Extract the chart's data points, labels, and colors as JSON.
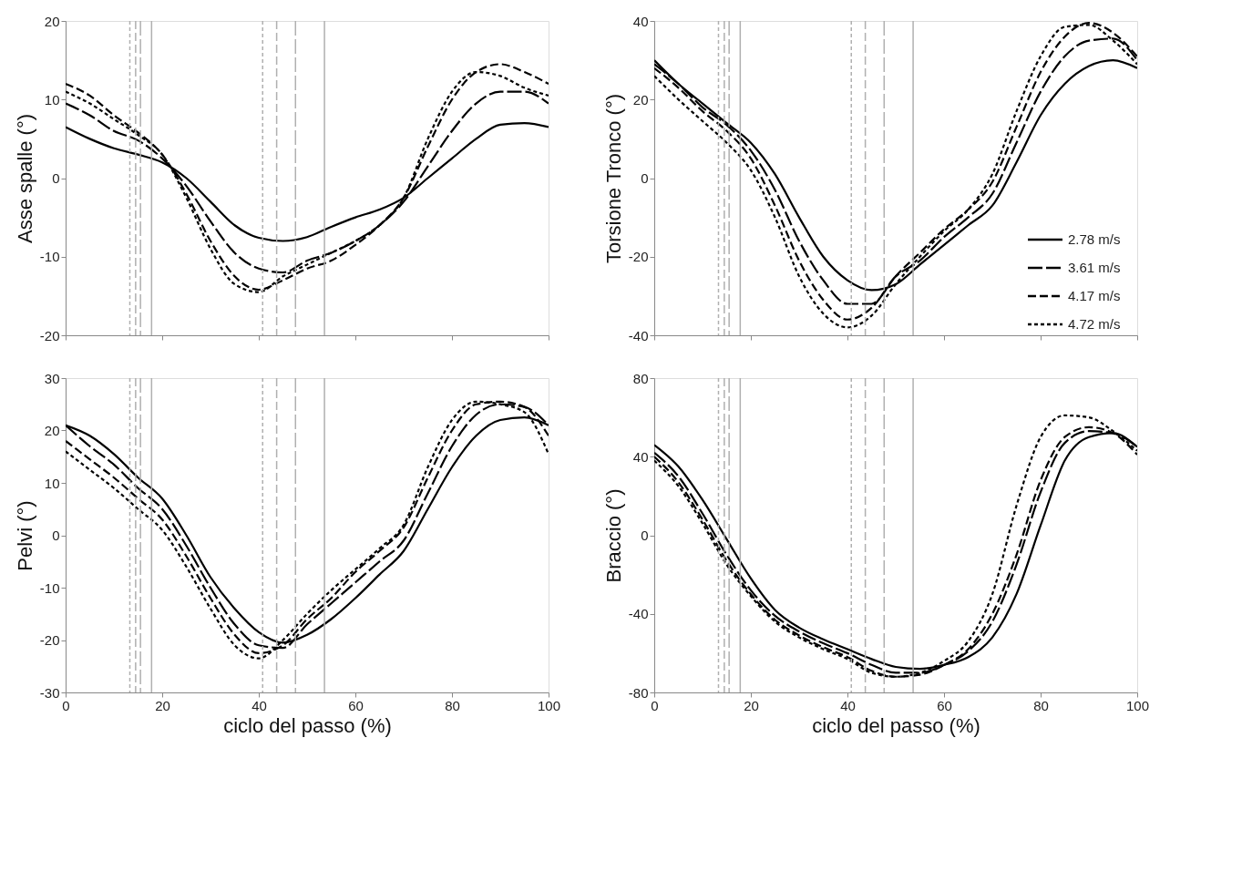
{
  "chart_data": [
    {
      "type": "line",
      "ylabel": "Asse spalle (°)",
      "xlim": [
        0,
        100
      ],
      "xticks": [
        0,
        20,
        40,
        60,
        80,
        100
      ],
      "ylim": [
        -20,
        20
      ],
      "yticks": [
        -20,
        -10,
        0,
        10,
        20
      ],
      "tick_labels": "y",
      "grid": false,
      "legend": false,
      "marker": "none",
      "x": [
        0,
        5,
        10,
        15,
        20,
        25,
        30,
        35,
        40,
        45,
        50,
        55,
        60,
        65,
        70,
        75,
        80,
        85,
        90,
        95,
        100
      ],
      "series": [
        {
          "color": "#000000",
          "line_style": "solid",
          "values": [
            6.5,
            5,
            3.8,
            3,
            2,
            0,
            -3,
            -6,
            -7.6,
            -8,
            -7.5,
            -6.2,
            -5,
            -4,
            -2.5,
            0,
            2.5,
            5,
            6.8,
            7,
            6.5
          ]
        },
        {
          "color": "#000000",
          "line_style": "dashdot",
          "values": [
            9.5,
            8,
            6,
            4.8,
            2.5,
            -1,
            -5.5,
            -9.5,
            -11.5,
            -12,
            -10.5,
            -9.5,
            -8,
            -6,
            -3,
            1.5,
            6,
            9.5,
            11,
            11,
            9.5
          ]
        },
        {
          "color": "#000000",
          "line_style": "dashed",
          "values": [
            12,
            10.5,
            8,
            5.8,
            3,
            -2,
            -8,
            -12.5,
            -14.2,
            -13,
            -11.5,
            -10.5,
            -8.5,
            -6,
            -2.5,
            4,
            10,
            13.5,
            14.5,
            13.5,
            12
          ]
        },
        {
          "color": "#000000",
          "line_style": "dotted",
          "values": [
            11,
            9.5,
            7.5,
            5.5,
            3,
            -2.5,
            -9,
            -13.5,
            -14.5,
            -12.5,
            -11,
            -9.5,
            -8,
            -6,
            -2.5,
            5,
            11,
            13.5,
            13,
            11.5,
            10.5
          ]
        }
      ],
      "ref_lines": [
        {
          "axis": "x",
          "value": 13.3,
          "color": "#b0b0b0",
          "line_style": "dotted"
        },
        {
          "axis": "x",
          "value": 14.5,
          "color": "#b0b0b0",
          "line_style": "dashed"
        },
        {
          "axis": "x",
          "value": 15.5,
          "color": "#b0b0b0",
          "line_style": "dashdot"
        },
        {
          "axis": "x",
          "value": 17.8,
          "color": "#b0b0b0",
          "line_style": "solid"
        },
        {
          "axis": "x",
          "value": 40.8,
          "color": "#b0b0b0",
          "line_style": "dotted"
        },
        {
          "axis": "x",
          "value": 43.7,
          "color": "#b0b0b0",
          "line_style": "dashed"
        },
        {
          "axis": "x",
          "value": 47.6,
          "color": "#b0b0b0",
          "line_style": "dashdot"
        },
        {
          "axis": "x",
          "value": 53.6,
          "color": "#b0b0b0",
          "line_style": "solid"
        }
      ]
    },
    {
      "type": "line",
      "ylabel": "Torsione Tronco (°)",
      "xlim": [
        0,
        100
      ],
      "xticks": [
        0,
        20,
        40,
        60,
        80,
        100
      ],
      "ylim": [
        -40,
        40
      ],
      "yticks": [
        -40,
        -20,
        0,
        20,
        40
      ],
      "tick_labels": "y",
      "grid": false,
      "legend": "bottom right",
      "marker": "none",
      "x": [
        0,
        5,
        10,
        15,
        20,
        25,
        30,
        35,
        40,
        45,
        50,
        55,
        60,
        65,
        70,
        75,
        80,
        85,
        90,
        95,
        100
      ],
      "series": [
        {
          "name": "2.78 m/s",
          "color": "#000000",
          "line_style": "solid",
          "values": [
            30,
            24,
            19,
            14,
            9,
            1,
            -10,
            -20,
            -26,
            -28.5,
            -27,
            -22,
            -17,
            -12,
            -7,
            4,
            16,
            24,
            28.5,
            30,
            28
          ]
        },
        {
          "name": "3.61 m/s",
          "color": "#000000",
          "line_style": "dashdot",
          "values": [
            29,
            24,
            18,
            13.5,
            7,
            -3,
            -16,
            -26,
            -32,
            -32,
            -25,
            -21,
            -15,
            -10,
            -4,
            9,
            22,
            31,
            35,
            35.5,
            30
          ]
        },
        {
          "name": "4.17 m/s",
          "color": "#000000",
          "line_style": "dashed",
          "values": [
            28,
            23,
            17,
            12,
            5,
            -7,
            -21,
            -31,
            -36,
            -33,
            -25,
            -19,
            -13,
            -8,
            -1,
            13,
            27,
            36,
            39.5,
            37,
            31
          ]
        },
        {
          "name": "4.72 m/s",
          "color": "#000000",
          "line_style": "dotted",
          "values": [
            26,
            20,
            14.5,
            9,
            2,
            -10,
            -25,
            -34.5,
            -38,
            -35,
            -27,
            -20,
            -13.5,
            -8,
            1,
            17,
            31,
            38.5,
            39,
            35,
            29
          ]
        }
      ],
      "ref_lines": [
        {
          "axis": "x",
          "value": 13.3,
          "color": "#b0b0b0",
          "line_style": "dotted"
        },
        {
          "axis": "x",
          "value": 14.5,
          "color": "#b0b0b0",
          "line_style": "dashed"
        },
        {
          "axis": "x",
          "value": 15.5,
          "color": "#b0b0b0",
          "line_style": "dashdot"
        },
        {
          "axis": "x",
          "value": 17.8,
          "color": "#b0b0b0",
          "line_style": "solid"
        },
        {
          "axis": "x",
          "value": 40.8,
          "color": "#b0b0b0",
          "line_style": "dotted"
        },
        {
          "axis": "x",
          "value": 43.7,
          "color": "#b0b0b0",
          "line_style": "dashed"
        },
        {
          "axis": "x",
          "value": 47.6,
          "color": "#b0b0b0",
          "line_style": "dashdot"
        },
        {
          "axis": "x",
          "value": 53.6,
          "color": "#b0b0b0",
          "line_style": "solid"
        }
      ]
    },
    {
      "type": "line",
      "ylabel": "Pelvi (°)",
      "xlabel": "ciclo del passo (%)",
      "xlim": [
        0,
        100
      ],
      "xticks": [
        0,
        20,
        40,
        60,
        80,
        100
      ],
      "ylim": [
        -30,
        30
      ],
      "yticks": [
        -30,
        -20,
        -10,
        0,
        10,
        20,
        30
      ],
      "grid": false,
      "legend": false,
      "marker": "none",
      "x": [
        0,
        5,
        10,
        15,
        20,
        25,
        30,
        35,
        40,
        45,
        50,
        55,
        60,
        65,
        70,
        75,
        80,
        85,
        90,
        95,
        100
      ],
      "series": [
        {
          "color": "#000000",
          "line_style": "solid",
          "values": [
            21,
            19,
            15.5,
            11,
            7,
            0,
            -8,
            -14,
            -18.5,
            -20.5,
            -19,
            -16,
            -12,
            -7.5,
            -3,
            5,
            13,
            19,
            22,
            22.5,
            21
          ]
        },
        {
          "color": "#000000",
          "line_style": "dashdot",
          "values": [
            21,
            17,
            13.5,
            9,
            5,
            -2,
            -10,
            -17,
            -21,
            -21.5,
            -17,
            -13,
            -9,
            -5,
            -1,
            8,
            17,
            23,
            25,
            24.5,
            21
          ]
        },
        {
          "color": "#000000",
          "line_style": "dashed",
          "values": [
            18,
            14.5,
            11,
            7,
            3,
            -4,
            -12,
            -19,
            -22.5,
            -21,
            -16,
            -12,
            -7,
            -3,
            1.5,
            11,
            20,
            25,
            25.5,
            24.5,
            19
          ]
        },
        {
          "color": "#000000",
          "line_style": "dotted",
          "values": [
            16,
            12.5,
            9,
            5,
            1,
            -6,
            -14,
            -21,
            -23.5,
            -20,
            -15,
            -10.5,
            -6.5,
            -2.5,
            2,
            13,
            22,
            25.5,
            25,
            23.5,
            15.5
          ]
        }
      ],
      "ref_lines": [
        {
          "axis": "x",
          "value": 13.3,
          "color": "#b0b0b0",
          "line_style": "dotted"
        },
        {
          "axis": "x",
          "value": 14.5,
          "color": "#b0b0b0",
          "line_style": "dashed"
        },
        {
          "axis": "x",
          "value": 15.5,
          "color": "#b0b0b0",
          "line_style": "dashdot"
        },
        {
          "axis": "x",
          "value": 17.8,
          "color": "#b0b0b0",
          "line_style": "solid"
        },
        {
          "axis": "x",
          "value": 40.8,
          "color": "#b0b0b0",
          "line_style": "dotted"
        },
        {
          "axis": "x",
          "value": 43.7,
          "color": "#b0b0b0",
          "line_style": "dashed"
        },
        {
          "axis": "x",
          "value": 47.6,
          "color": "#b0b0b0",
          "line_style": "dashdot"
        },
        {
          "axis": "x",
          "value": 53.6,
          "color": "#b0b0b0",
          "line_style": "solid"
        }
      ]
    },
    {
      "type": "line",
      "ylabel": "Braccio (°)",
      "xlabel": "ciclo del passo (%)",
      "xlim": [
        0,
        100
      ],
      "xticks": [
        0,
        20,
        40,
        60,
        80,
        100
      ],
      "ylim": [
        -80,
        80
      ],
      "yticks": [
        -80,
        -40,
        0,
        40,
        80
      ],
      "grid": false,
      "legend": false,
      "marker": "none",
      "x": [
        0,
        5,
        10,
        15,
        20,
        25,
        30,
        35,
        40,
        45,
        50,
        55,
        60,
        65,
        70,
        75,
        80,
        85,
        90,
        95,
        100
      ],
      "series": [
        {
          "color": "#000000",
          "line_style": "solid",
          "values": [
            46,
            35,
            18,
            -2,
            -22,
            -38,
            -47,
            -53,
            -58,
            -63,
            -67,
            -68,
            -66,
            -62,
            -52,
            -30,
            5,
            38,
            50,
            52,
            45
          ]
        },
        {
          "color": "#000000",
          "line_style": "dashdot",
          "values": [
            42,
            30,
            11,
            -10,
            -28,
            -41,
            -49,
            -55,
            -60,
            -66,
            -70,
            -70,
            -66,
            -59,
            -44,
            -15,
            22,
            47,
            53,
            52,
            45
          ]
        },
        {
          "color": "#000000",
          "line_style": "dashed",
          "values": [
            40,
            27,
            8,
            -13,
            -30,
            -43,
            -51,
            -57,
            -62,
            -69,
            -72,
            -71,
            -66,
            -58,
            -40,
            -10,
            28,
            50,
            55,
            52,
            41
          ]
        },
        {
          "color": "#000000",
          "line_style": "dotted",
          "values": [
            38,
            25,
            6,
            -15,
            -31,
            -44,
            -52,
            -58,
            -63,
            -70,
            -72,
            -70,
            -64,
            -54,
            -30,
            15,
            50,
            61,
            60,
            53,
            43
          ]
        }
      ],
      "ref_lines": [
        {
          "axis": "x",
          "value": 13.3,
          "color": "#b0b0b0",
          "line_style": "dotted"
        },
        {
          "axis": "x",
          "value": 14.5,
          "color": "#b0b0b0",
          "line_style": "dashed"
        },
        {
          "axis": "x",
          "value": 15.5,
          "color": "#b0b0b0",
          "line_style": "dashdot"
        },
        {
          "axis": "x",
          "value": 17.8,
          "color": "#b0b0b0",
          "line_style": "solid"
        },
        {
          "axis": "x",
          "value": 40.8,
          "color": "#b0b0b0",
          "line_style": "dotted"
        },
        {
          "axis": "x",
          "value": 43.7,
          "color": "#b0b0b0",
          "line_style": "dashed"
        },
        {
          "axis": "x",
          "value": 47.6,
          "color": "#b0b0b0",
          "line_style": "dashdot"
        },
        {
          "axis": "x",
          "value": 53.6,
          "color": "#b0b0b0",
          "line_style": "solid"
        }
      ]
    }
  ]
}
